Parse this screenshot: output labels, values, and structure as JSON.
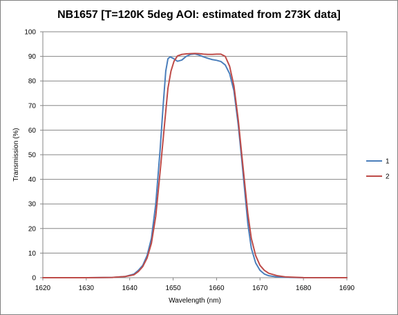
{
  "chart_data": {
    "type": "line",
    "title": "NB1657 [T=120K 5deg AOI: estimated from 273K data]",
    "xlabel": "Wavelength (nm)",
    "ylabel": "Transmission (%)",
    "xlim": [
      1620,
      1690
    ],
    "ylim": [
      0,
      100
    ],
    "xticks": [
      1620,
      1630,
      1640,
      1650,
      1660,
      1670,
      1680,
      1690
    ],
    "yticks": [
      0,
      10,
      20,
      30,
      40,
      50,
      60,
      70,
      80,
      90,
      100
    ],
    "grid": "horizontal",
    "legend_position": "right",
    "series": [
      {
        "name": "1",
        "color": "#4a7ebb",
        "points": [
          [
            1620,
            0
          ],
          [
            1630,
            0
          ],
          [
            1636,
            0.1
          ],
          [
            1639,
            0.5
          ],
          [
            1641,
            1.5
          ],
          [
            1642,
            3
          ],
          [
            1643,
            5
          ],
          [
            1644,
            9
          ],
          [
            1645,
            16
          ],
          [
            1646,
            30
          ],
          [
            1647,
            52
          ],
          [
            1647.7,
            70
          ],
          [
            1648.3,
            84
          ],
          [
            1648.8,
            89
          ],
          [
            1649.3,
            89.8
          ],
          [
            1650,
            89.2
          ],
          [
            1651,
            88
          ],
          [
            1652,
            88.5
          ],
          [
            1653,
            90
          ],
          [
            1654,
            90.8
          ],
          [
            1655,
            91
          ],
          [
            1656,
            90.5
          ],
          [
            1657,
            89.8
          ],
          [
            1658,
            89.2
          ],
          [
            1659,
            88.7
          ],
          [
            1660,
            88.4
          ],
          [
            1661,
            87.9
          ],
          [
            1662,
            86.5
          ],
          [
            1663,
            83
          ],
          [
            1664,
            76
          ],
          [
            1665,
            62
          ],
          [
            1665.8,
            48
          ],
          [
            1666.5,
            35
          ],
          [
            1667.2,
            22
          ],
          [
            1668,
            12
          ],
          [
            1669,
            6
          ],
          [
            1670,
            3
          ],
          [
            1671,
            1.5
          ],
          [
            1672,
            0.8
          ],
          [
            1674,
            0.3
          ],
          [
            1677,
            0.1
          ],
          [
            1680,
            0
          ],
          [
            1690,
            0
          ]
        ]
      },
      {
        "name": "2",
        "color": "#be4b48",
        "points": [
          [
            1620,
            0
          ],
          [
            1630,
            0
          ],
          [
            1636,
            0.1
          ],
          [
            1639,
            0.5
          ],
          [
            1641,
            1.2
          ],
          [
            1642,
            2.5
          ],
          [
            1643,
            4.5
          ],
          [
            1644,
            8
          ],
          [
            1645,
            14
          ],
          [
            1646,
            25
          ],
          [
            1647,
            43
          ],
          [
            1648,
            62
          ],
          [
            1648.8,
            77
          ],
          [
            1649.5,
            84
          ],
          [
            1650.2,
            88
          ],
          [
            1651,
            90.2
          ],
          [
            1652,
            90.8
          ],
          [
            1653,
            91
          ],
          [
            1654,
            91.1
          ],
          [
            1655,
            91.2
          ],
          [
            1656,
            91.1
          ],
          [
            1657,
            90.9
          ],
          [
            1658,
            90.8
          ],
          [
            1659,
            90.8
          ],
          [
            1660,
            90.9
          ],
          [
            1661,
            90.9
          ],
          [
            1662,
            90
          ],
          [
            1663,
            86
          ],
          [
            1664,
            78
          ],
          [
            1665,
            64
          ],
          [
            1665.8,
            50
          ],
          [
            1666.5,
            38
          ],
          [
            1667.2,
            26
          ],
          [
            1668,
            16
          ],
          [
            1669,
            9
          ],
          [
            1670,
            5
          ],
          [
            1671,
            3
          ],
          [
            1672,
            1.8
          ],
          [
            1674,
            0.8
          ],
          [
            1676,
            0.3
          ],
          [
            1680,
            0.05
          ],
          [
            1690,
            0
          ]
        ]
      }
    ]
  }
}
